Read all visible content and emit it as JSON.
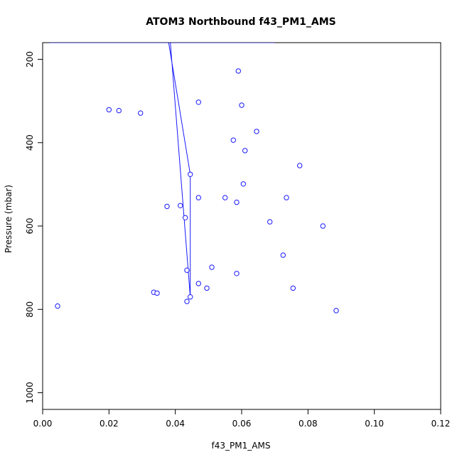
{
  "chart_data": {
    "type": "line",
    "title": "ATOM3 Northbound f43_PM1_AMS",
    "xlabel": "f43_PM1_AMS",
    "ylabel": "Pressure (mbar)",
    "xlim": [
      0.0,
      0.12
    ],
    "ylim": [
      1040,
      160
    ],
    "y_reversed": true,
    "grid": false,
    "legend": "none",
    "x_ticks": [
      0.0,
      0.02,
      0.04,
      0.06,
      0.08,
      0.1,
      0.12
    ],
    "x_tick_labels": [
      "0.00",
      "0.02",
      "0.04",
      "0.06",
      "0.08",
      "0.10",
      "0.12"
    ],
    "y_ticks": [
      200,
      400,
      600,
      800,
      1000
    ],
    "y_tick_labels": [
      "200",
      "400",
      "600",
      "800",
      "1000"
    ],
    "colors": {
      "series": "#1a1aff"
    },
    "series": [
      {
        "line_points": [
          {
            "x": 0.015,
            "y": 160
          },
          {
            "x": 0.002,
            "y": 160
          },
          {
            "x": 0.038,
            "y": 160
          },
          {
            "x": 0.0445,
            "y": 476
          },
          {
            "x": 0.0445,
            "y": 770
          },
          {
            "x": 0.0385,
            "y": 160
          },
          {
            "x": 0.048,
            "y": 160
          },
          {
            "x": 0.07,
            "y": 160
          }
        ],
        "points": [
          {
            "x": 0.059,
            "y": 228
          },
          {
            "x": 0.047,
            "y": 303
          },
          {
            "x": 0.06,
            "y": 310
          },
          {
            "x": 0.02,
            "y": 321
          },
          {
            "x": 0.023,
            "y": 323
          },
          {
            "x": 0.0295,
            "y": 329
          },
          {
            "x": 0.0645,
            "y": 373
          },
          {
            "x": 0.0575,
            "y": 394
          },
          {
            "x": 0.061,
            "y": 419
          },
          {
            "x": 0.0775,
            "y": 455
          },
          {
            "x": 0.0445,
            "y": 476
          },
          {
            "x": 0.0605,
            "y": 499
          },
          {
            "x": 0.047,
            "y": 532
          },
          {
            "x": 0.055,
            "y": 532
          },
          {
            "x": 0.0735,
            "y": 532
          },
          {
            "x": 0.0585,
            "y": 543
          },
          {
            "x": 0.0415,
            "y": 551
          },
          {
            "x": 0.0375,
            "y": 553
          },
          {
            "x": 0.043,
            "y": 580
          },
          {
            "x": 0.0685,
            "y": 590
          },
          {
            "x": 0.0845,
            "y": 600
          },
          {
            "x": 0.0725,
            "y": 670
          },
          {
            "x": 0.051,
            "y": 699
          },
          {
            "x": 0.0435,
            "y": 706
          },
          {
            "x": 0.0585,
            "y": 714
          },
          {
            "x": 0.047,
            "y": 738
          },
          {
            "x": 0.0495,
            "y": 749
          },
          {
            "x": 0.0755,
            "y": 749
          },
          {
            "x": 0.0335,
            "y": 759
          },
          {
            "x": 0.0345,
            "y": 761
          },
          {
            "x": 0.0445,
            "y": 770
          },
          {
            "x": 0.0435,
            "y": 781
          },
          {
            "x": 0.0045,
            "y": 792
          },
          {
            "x": 0.0885,
            "y": 803
          }
        ]
      }
    ]
  }
}
